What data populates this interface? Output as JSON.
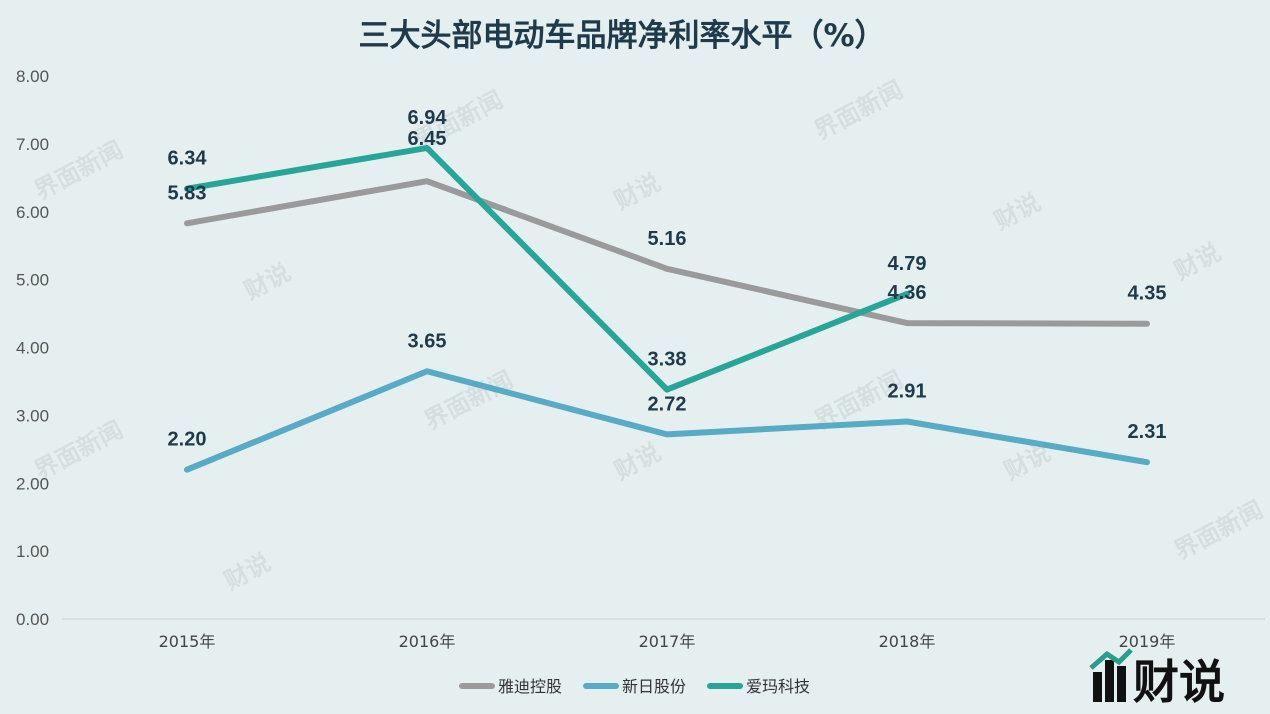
{
  "watermark": {
    "text1": "界面新闻",
    "text2": "财说"
  },
  "logo": {
    "text": "财说"
  },
  "chart_data": {
    "type": "line",
    "title": "三大头部电动车品牌净利率水平（%）",
    "categories": [
      "2015年",
      "2016年",
      "2017年",
      "2018年",
      "2019年"
    ],
    "ylim": [
      0,
      8
    ],
    "yticks": [
      "0.00",
      "1.00",
      "2.00",
      "3.00",
      "4.00",
      "5.00",
      "6.00",
      "7.00",
      "8.00"
    ],
    "grid": false,
    "legend_position": "bottom",
    "series": [
      {
        "name": "雅迪控股",
        "color": "#9a9a9a",
        "values": [
          5.83,
          6.45,
          5.16,
          4.36,
          4.35
        ],
        "labels": [
          "5.83",
          "6.45",
          "5.16",
          "4.36",
          "4.35"
        ]
      },
      {
        "name": "新日股份",
        "color": "#57abc4",
        "values": [
          2.2,
          3.65,
          2.72,
          2.91,
          2.31
        ],
        "labels": [
          "2.20",
          "3.65",
          "2.72",
          "2.91",
          "2.31"
        ]
      },
      {
        "name": "爱玛科技",
        "color": "#27a598",
        "values": [
          6.34,
          6.94,
          3.38,
          4.79,
          null
        ],
        "labels": [
          "6.34",
          "6.94",
          "3.38",
          "4.79",
          null
        ]
      }
    ]
  }
}
